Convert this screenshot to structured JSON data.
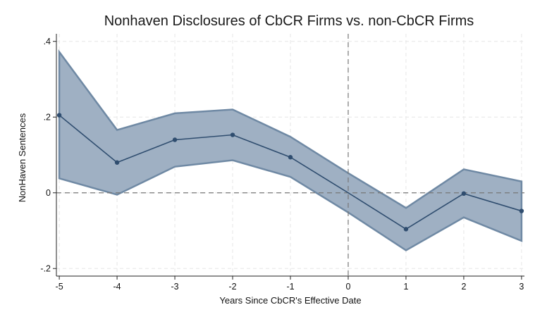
{
  "chart_data": {
    "type": "line",
    "title": "Nonhaven Disclosures of CbCR Firms vs. non-CbCR Firms",
    "xlabel": "Years Since CbCR's Effective Date",
    "ylabel": "NonHaven Sentences",
    "x": [
      -5,
      -4,
      -3,
      -2,
      -1,
      0,
      1,
      2,
      3
    ],
    "x_tick_labels": [
      "-5",
      "-4",
      "-3",
      "-2",
      "-1",
      "0",
      "1",
      "2",
      "3"
    ],
    "y_ticks": [
      -0.2,
      0,
      0.2,
      0.4
    ],
    "y_tick_labels": [
      "-.2",
      "0",
      ".2",
      ".4"
    ],
    "xlim": [
      -5.05,
      3.05
    ],
    "ylim": [
      -0.22,
      0.42
    ],
    "series": [
      {
        "type": "line",
        "values": [
          0.205,
          0.08,
          0.14,
          0.153,
          0.094,
          0.0,
          -0.096,
          -0.002,
          -0.048
        ],
        "show_markers_except_x": [
          0
        ]
      },
      {
        "type": "band",
        "lower": [
          0.038,
          -0.005,
          0.069,
          0.086,
          0.042,
          -0.052,
          -0.152,
          -0.065,
          -0.127
        ],
        "upper": [
          0.372,
          0.166,
          0.21,
          0.22,
          0.148,
          0.052,
          -0.04,
          0.062,
          0.03
        ]
      }
    ],
    "reference_lines": {
      "y": 0,
      "x": 0,
      "style": "dashed"
    },
    "grid": "light dashed",
    "colors": {
      "line": "#2f4d6f",
      "band_fill": "#9fb0c3",
      "band_edge": "#6f89a4",
      "ref_line": "#777777",
      "grid": "#e6e6e6"
    }
  }
}
